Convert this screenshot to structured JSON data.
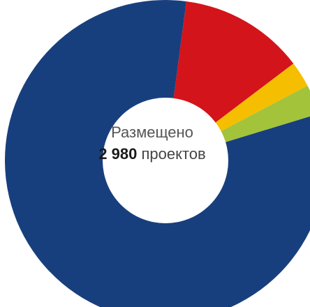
{
  "center": {
    "line1": "Размещено",
    "value": "2 980",
    "suffix": "проектов"
  },
  "chart_data": {
    "type": "pie",
    "variant": "donut",
    "title": "",
    "total": 2980,
    "slices": [
      {
        "value": 81.8,
        "color": "#183f7d"
      },
      {
        "value": 12.6,
        "color": "#d3141b"
      },
      {
        "value": 2.6,
        "color": "#f6be00"
      },
      {
        "value": 3.0,
        "color": "#a3c33b"
      }
    ]
  }
}
